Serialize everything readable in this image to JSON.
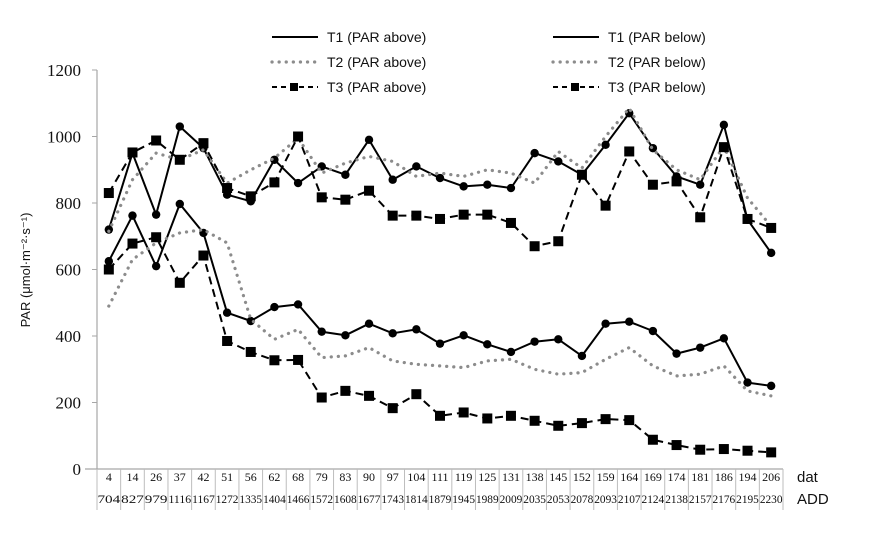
{
  "chart_data": {
    "type": "line",
    "title": "",
    "ylabel": "PAR (μmol·m⁻²·s⁻¹)",
    "xlabel": "",
    "ylim": [
      0,
      1200
    ],
    "yticks": [
      0,
      200,
      400,
      600,
      800,
      1000,
      1200
    ],
    "grid": false,
    "legend_placement": "top",
    "x_rows": [
      {
        "label": "dat",
        "values": [
          "4",
          "14",
          "26",
          "37",
          "42",
          "51",
          "56",
          "62",
          "68",
          "79",
          "83",
          "90",
          "97",
          "104",
          "111",
          "119",
          "125",
          "131",
          "138",
          "145",
          "152",
          "159",
          "164",
          "169",
          "174",
          "181",
          "186",
          "194",
          "206"
        ]
      },
      {
        "label": "ADD",
        "values": [
          "704",
          "827",
          "979",
          "1116",
          "1167",
          "1272",
          "1335",
          "1404",
          "1466",
          "1572",
          "1608",
          "1677",
          "1743",
          "1814",
          "1879",
          "1945",
          "1989",
          "2009",
          "2035",
          "2053",
          "2078",
          "2093",
          "2107",
          "2124",
          "2138",
          "2157",
          "2176",
          "2195",
          "2230"
        ]
      }
    ],
    "series": [
      {
        "name": "T1 (PAR above)",
        "style": "solid-circle",
        "values": [
          720,
          950,
          765,
          1030,
          965,
          825,
          805,
          930,
          860,
          910,
          885,
          990,
          870,
          910,
          875,
          850,
          855,
          845,
          950,
          925,
          885,
          975,
          1070,
          965,
          880,
          855,
          1035,
          750,
          650
        ]
      },
      {
        "name": "T2 (PAR above)",
        "style": "dotted",
        "values": [
          715,
          870,
          950,
          930,
          960,
          860,
          900,
          935,
          995,
          890,
          920,
          940,
          925,
          880,
          890,
          880,
          900,
          890,
          860,
          955,
          905,
          1000,
          1085,
          960,
          900,
          870,
          970,
          815,
          730
        ]
      },
      {
        "name": "T3 (PAR above)",
        "style": "dashed-square",
        "values": [
          830,
          952,
          988,
          930,
          980,
          845,
          820,
          862,
          1000,
          817,
          810,
          837,
          762,
          762,
          752,
          765,
          765,
          740,
          670,
          685,
          885,
          792,
          955,
          855,
          865,
          757,
          968,
          752,
          725
        ]
      },
      {
        "name": "T1 (PAR below)",
        "style": "solid-circle",
        "values": [
          625,
          762,
          610,
          797,
          710,
          470,
          445,
          487,
          495,
          413,
          402,
          437,
          408,
          420,
          377,
          402,
          375,
          352,
          383,
          390,
          340,
          437,
          443,
          415,
          347,
          365,
          393,
          260,
          250
        ]
      },
      {
        "name": "T2 (PAR below)",
        "style": "dotted",
        "values": [
          490,
          630,
          680,
          710,
          720,
          680,
          450,
          390,
          420,
          335,
          340,
          365,
          325,
          315,
          310,
          305,
          325,
          330,
          300,
          285,
          290,
          330,
          365,
          310,
          280,
          285,
          310,
          235,
          220
        ]
      },
      {
        "name": "T3 (PAR below)",
        "style": "dashed-square",
        "values": [
          600,
          678,
          697,
          560,
          642,
          385,
          352,
          327,
          328,
          215,
          235,
          220,
          183,
          225,
          160,
          170,
          152,
          160,
          145,
          130,
          138,
          150,
          147,
          88,
          72,
          58,
          60,
          55,
          50
        ]
      }
    ],
    "colors": {
      "solid": "#000000",
      "dotted": "#8c8c8c",
      "dashed": "#000000",
      "axis": "#a6a6a6"
    }
  }
}
